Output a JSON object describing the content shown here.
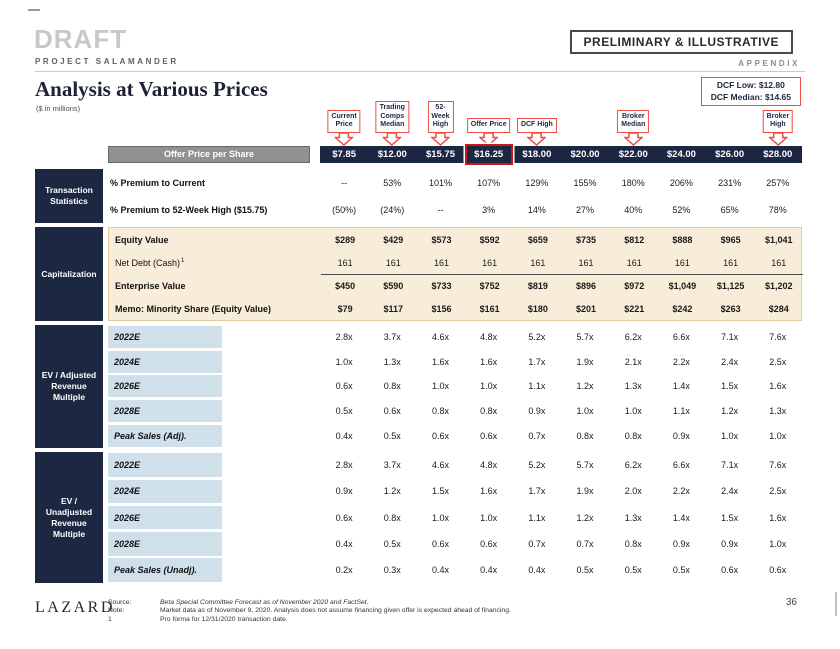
{
  "header": {
    "draft": "DRAFT",
    "stamp": "PRELIMINARY & ILLUSTRATIVE",
    "project": "PROJECT SALAMANDER",
    "appendix": "APPENDIX",
    "title": "Analysis at Various Prices",
    "subtitle": "($ in millions)",
    "dcf_low": "DCF Low: $12.80",
    "dcf_median": "DCF Median: $14.65"
  },
  "colors": {
    "navy": "#1c2742",
    "beige": "#f8edd9",
    "light_blue": "#cfe0ea",
    "callout_red": "#ef4b45",
    "highlight_red": "#c9161d",
    "gray_bar": "#8f9192"
  },
  "callouts": [
    {
      "label": "Current\nPrice",
      "col": 0
    },
    {
      "label": "Trading\nComps\nMedian",
      "col": 1
    },
    {
      "label": "52-\nWeek\nHigh",
      "col": 2
    },
    {
      "label": "Offer Price",
      "col": 3
    },
    {
      "label": "DCF High",
      "col": 4
    },
    {
      "label": "Broker\nMedian",
      "col": 6
    },
    {
      "label": "Broker\nHigh",
      "col": 9
    }
  ],
  "price_row": {
    "label": "Offer Price per Share",
    "highlight_col": 3,
    "values": [
      "$7.85",
      "$12.00",
      "$15.75",
      "$16.25",
      "$18.00",
      "$20.00",
      "$22.00",
      "$24.00",
      "$26.00",
      "$28.00"
    ]
  },
  "sections": [
    {
      "name": "Transaction Statistics",
      "kind": "stats",
      "rows": [
        {
          "label": "% Premium to Current",
          "label_bold": true,
          "values_bold": false,
          "values": [
            "--",
            "53%",
            "101%",
            "107%",
            "129%",
            "155%",
            "180%",
            "206%",
            "231%",
            "257%"
          ]
        },
        {
          "label": "% Premium to 52-Week High ($15.75)",
          "label_bold": true,
          "values_bold": false,
          "values": [
            "(50%)",
            "(24%)",
            "--",
            "3%",
            "14%",
            "27%",
            "40%",
            "52%",
            "65%",
            "78%"
          ]
        }
      ]
    },
    {
      "name": "Capitalization",
      "kind": "beige",
      "rows": [
        {
          "label": "Equity Value",
          "label_bold": true,
          "values_bold": true,
          "values": [
            "$289",
            "$429",
            "$573",
            "$592",
            "$659",
            "$735",
            "$812",
            "$888",
            "$965",
            "$1,041"
          ]
        },
        {
          "label": "Net Debt (Cash)",
          "sup": "1",
          "label_bold": false,
          "values_bold": false,
          "values": [
            "161",
            "161",
            "161",
            "161",
            "161",
            "161",
            "161",
            "161",
            "161",
            "161"
          ]
        },
        {
          "label": "Enterprise Value",
          "label_bold": true,
          "values_bold": true,
          "topline": true,
          "values": [
            "$450",
            "$590",
            "$733",
            "$752",
            "$819",
            "$896",
            "$972",
            "$1,049",
            "$1,125",
            "$1,202"
          ]
        },
        {
          "label": "Memo: Minority Share (Equity Value)",
          "label_bold": true,
          "values_bold": true,
          "values": [
            "$79",
            "$117",
            "$156",
            "$161",
            "$180",
            "$201",
            "$221",
            "$242",
            "$263",
            "$284"
          ]
        }
      ]
    },
    {
      "name": "EV / Adjusted Revenue Multiple",
      "kind": "mult-a",
      "rows": [
        {
          "label": "2022E",
          "values": [
            "2.8x",
            "3.7x",
            "4.6x",
            "4.8x",
            "5.2x",
            "5.7x",
            "6.2x",
            "6.6x",
            "7.1x",
            "7.6x"
          ]
        },
        {
          "label": "2024E",
          "values": [
            "1.0x",
            "1.3x",
            "1.6x",
            "1.6x",
            "1.7x",
            "1.9x",
            "2.1x",
            "2.2x",
            "2.4x",
            "2.5x"
          ]
        },
        {
          "label": "2026E",
          "values": [
            "0.6x",
            "0.8x",
            "1.0x",
            "1.0x",
            "1.1x",
            "1.2x",
            "1.3x",
            "1.4x",
            "1.5x",
            "1.6x"
          ]
        },
        {
          "label": "2028E",
          "values": [
            "0.5x",
            "0.6x",
            "0.8x",
            "0.8x",
            "0.9x",
            "1.0x",
            "1.0x",
            "1.1x",
            "1.2x",
            "1.3x"
          ]
        },
        {
          "label": "Peak Sales (Adj).",
          "values": [
            "0.4x",
            "0.5x",
            "0.6x",
            "0.6x",
            "0.7x",
            "0.8x",
            "0.8x",
            "0.9x",
            "1.0x",
            "1.0x"
          ]
        }
      ]
    },
    {
      "name": "EV / Unadjusted Revenue Multiple",
      "kind": "mult-b",
      "rows": [
        {
          "label": "2022E",
          "values": [
            "2.8x",
            "3.7x",
            "4.6x",
            "4.8x",
            "5.2x",
            "5.7x",
            "6.2x",
            "6.6x",
            "7.1x",
            "7.6x"
          ]
        },
        {
          "label": "2024E",
          "values": [
            "0.9x",
            "1.2x",
            "1.5x",
            "1.6x",
            "1.7x",
            "1.9x",
            "2.0x",
            "2.2x",
            "2.4x",
            "2.5x"
          ]
        },
        {
          "label": "2026E",
          "values": [
            "0.6x",
            "0.8x",
            "1.0x",
            "1.0x",
            "1.1x",
            "1.2x",
            "1.3x",
            "1.4x",
            "1.5x",
            "1.6x"
          ]
        },
        {
          "label": "2028E",
          "values": [
            "0.4x",
            "0.5x",
            "0.6x",
            "0.6x",
            "0.7x",
            "0.7x",
            "0.8x",
            "0.9x",
            "0.9x",
            "1.0x"
          ]
        },
        {
          "label": "Peak Sales (Unadj).",
          "values": [
            "0.2x",
            "0.3x",
            "0.4x",
            "0.4x",
            "0.4x",
            "0.5x",
            "0.5x",
            "0.5x",
            "0.6x",
            "0.6x"
          ]
        }
      ]
    }
  ],
  "footer": {
    "logo": "LAZARD",
    "source_label": "Source:",
    "source_text": "Beta Special Committee Forecast as of November 2020 and FactSet.",
    "note_label": "Note:",
    "note_text": "Market data as of November 9, 2020. Analysis does not assume financing given offer is expected ahead of financing.",
    "fn1_label": "1",
    "fn1_text": "Pro forma for 12/31/2020 transaction date.",
    "page": "36"
  }
}
